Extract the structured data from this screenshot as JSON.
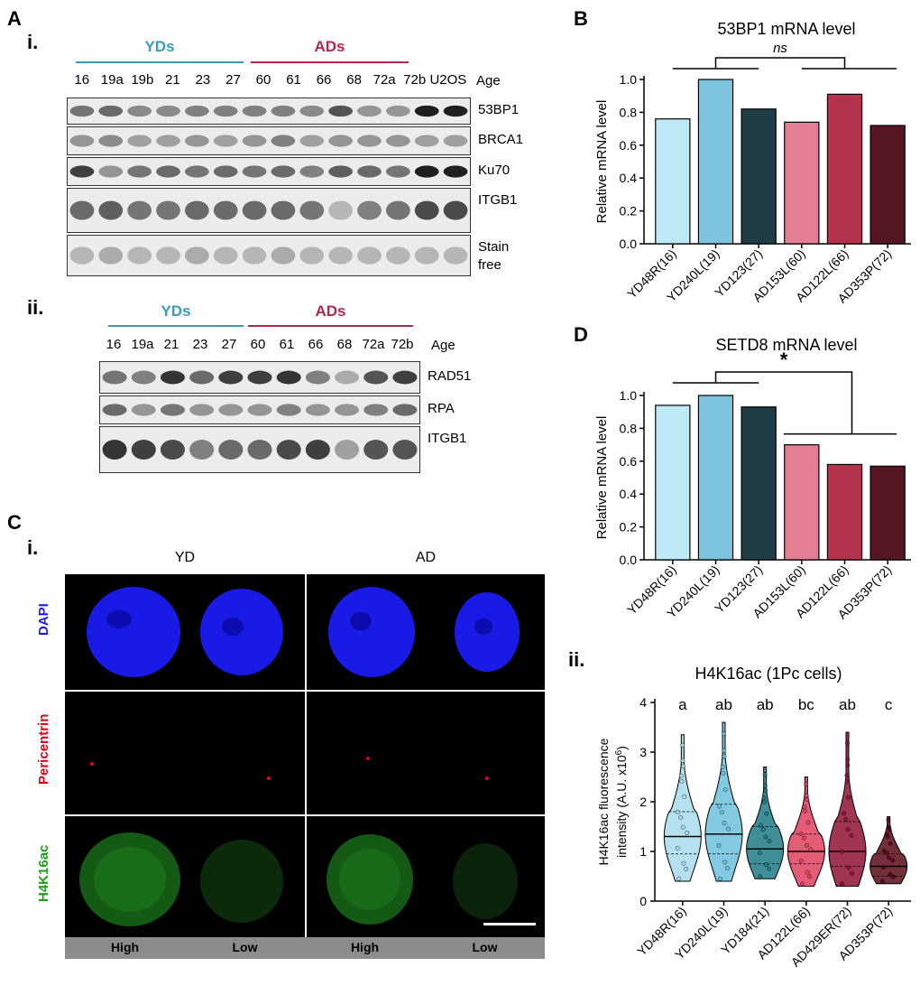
{
  "panels": {
    "A": "A",
    "A_i": "i.",
    "A_ii": "ii.",
    "B": "B",
    "C": "C",
    "C_i": "i.",
    "C_ii": "ii.",
    "D": "D"
  },
  "blot_i": {
    "group_yd": "YDs",
    "group_ad": "ADs",
    "lanes": [
      "16",
      "19a",
      "19b",
      "21",
      "23",
      "27",
      "60",
      "61",
      "66",
      "68",
      "72a",
      "72b",
      "U2OS"
    ],
    "age_label": "Age",
    "rows": [
      "53BP1",
      "BRCA1",
      "Ku70",
      "ITGB1",
      "Stain free"
    ]
  },
  "blot_ii": {
    "group_yd": "YDs",
    "group_ad": "ADs",
    "lanes": [
      "16",
      "19a",
      "21",
      "23",
      "27",
      "60",
      "61",
      "66",
      "68",
      "72a",
      "72b"
    ],
    "age_label": "Age",
    "rows": [
      "RAD51",
      "RPA",
      "ITGB1"
    ]
  },
  "micro": {
    "col_yd": "YD",
    "col_ad": "AD",
    "channels": [
      "DAPI",
      "Pericentrin",
      "H4K16ac"
    ],
    "channel_colors": [
      "#1a1aff",
      "#e8001a",
      "#1aa01a"
    ],
    "footer": [
      "High",
      "Low",
      "High",
      "Low"
    ]
  },
  "chart_data": [
    {
      "type": "bar",
      "title": "53BP1 mRNA level",
      "ylabel": "Relative mRNA level",
      "ylim": [
        0,
        1.0
      ],
      "yticks": [
        "0.0",
        "0.2",
        "0.4",
        "0.6",
        "0.8",
        "1.0"
      ],
      "categories": [
        "YD48R(16)",
        "YD240L(19)",
        "YD123(27)",
        "AD153L(60)",
        "AD122L(66)",
        "AD353P(72)"
      ],
      "values": [
        0.76,
        1.0,
        0.82,
        0.74,
        0.91,
        0.72
      ],
      "colors": [
        "#bde9f7",
        "#7cc3de",
        "#1f3d45",
        "#e47e93",
        "#b3334d",
        "#541722"
      ],
      "significance": "ns"
    },
    {
      "type": "bar",
      "title": "SETD8 mRNA level",
      "ylabel": "Relative mRNA level",
      "ylim": [
        0,
        1.0
      ],
      "yticks": [
        "0.0",
        "0.2",
        "0.4",
        "0.6",
        "0.8",
        "1.0"
      ],
      "categories": [
        "YD48R(16)",
        "YD240L(19)",
        "YD123(27)",
        "AD153L(60)",
        "AD122L(66)",
        "AD353P(72)"
      ],
      "values": [
        0.94,
        1.0,
        0.93,
        0.7,
        0.58,
        0.57
      ],
      "colors": [
        "#bde9f7",
        "#7cc3de",
        "#1f3d45",
        "#e47e93",
        "#b3334d",
        "#541722"
      ],
      "significance": "*"
    },
    {
      "type": "violin",
      "title": "H4K16ac (1Pc cells)",
      "ylabel_line1": "H4K16ac fluorescence",
      "ylabel_line2": "intensity (A.U. x10",
      "ylabel_sup": "6",
      "ylabel_end": ")",
      "ylim": [
        0,
        4
      ],
      "yticks": [
        "0",
        "1",
        "2",
        "3",
        "4"
      ],
      "categories": [
        "YD48R(16)",
        "YD240L(19)",
        "YD184(21)",
        "AD122L(66)",
        "AD429ER(72)",
        "AD353P(72)"
      ],
      "letters": [
        "a",
        "ab",
        "ab",
        "bc",
        "ab",
        "c"
      ],
      "colors": [
        "#a8dbeb",
        "#6cc0dc",
        "#1f7a85",
        "#e0405e",
        "#8f1233",
        "#5a0a18"
      ],
      "median": [
        1.3,
        1.35,
        1.05,
        1.0,
        1.0,
        0.7
      ],
      "q1": [
        0.95,
        0.95,
        0.75,
        0.75,
        0.7,
        0.5
      ],
      "q3": [
        1.8,
        1.95,
        1.5,
        1.35,
        1.6,
        0.95
      ],
      "min": [
        0.4,
        0.4,
        0.45,
        0.3,
        0.3,
        0.35
      ],
      "max": [
        3.35,
        3.6,
        2.7,
        2.5,
        3.4,
        1.7
      ]
    }
  ]
}
